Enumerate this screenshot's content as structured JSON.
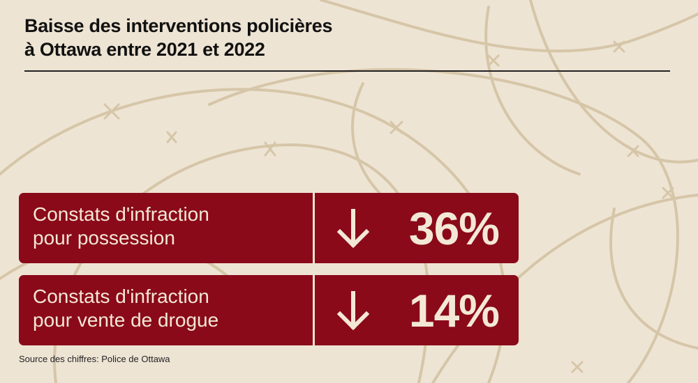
{
  "title": {
    "line1": "Baisse des interventions policières",
    "line2": "à Ottawa entre 2021 et 2022"
  },
  "stats": [
    {
      "label_line1": "Constats d'infraction",
      "label_line2": "pour possession",
      "direction": "down",
      "value": "36%"
    },
    {
      "label_line1": "Constats d'infraction",
      "label_line2": "pour vente de drogue",
      "direction": "down",
      "value": "14%"
    }
  ],
  "source": "Source des chiffres: Police de Ottawa",
  "colors": {
    "background": "#eee4d4",
    "card": "#8a0a19",
    "card_text": "#f3e8d6",
    "wire": "#d6c6a8"
  },
  "icons": {
    "arrow": "arrow-down-icon",
    "background": "barbed-wire"
  }
}
